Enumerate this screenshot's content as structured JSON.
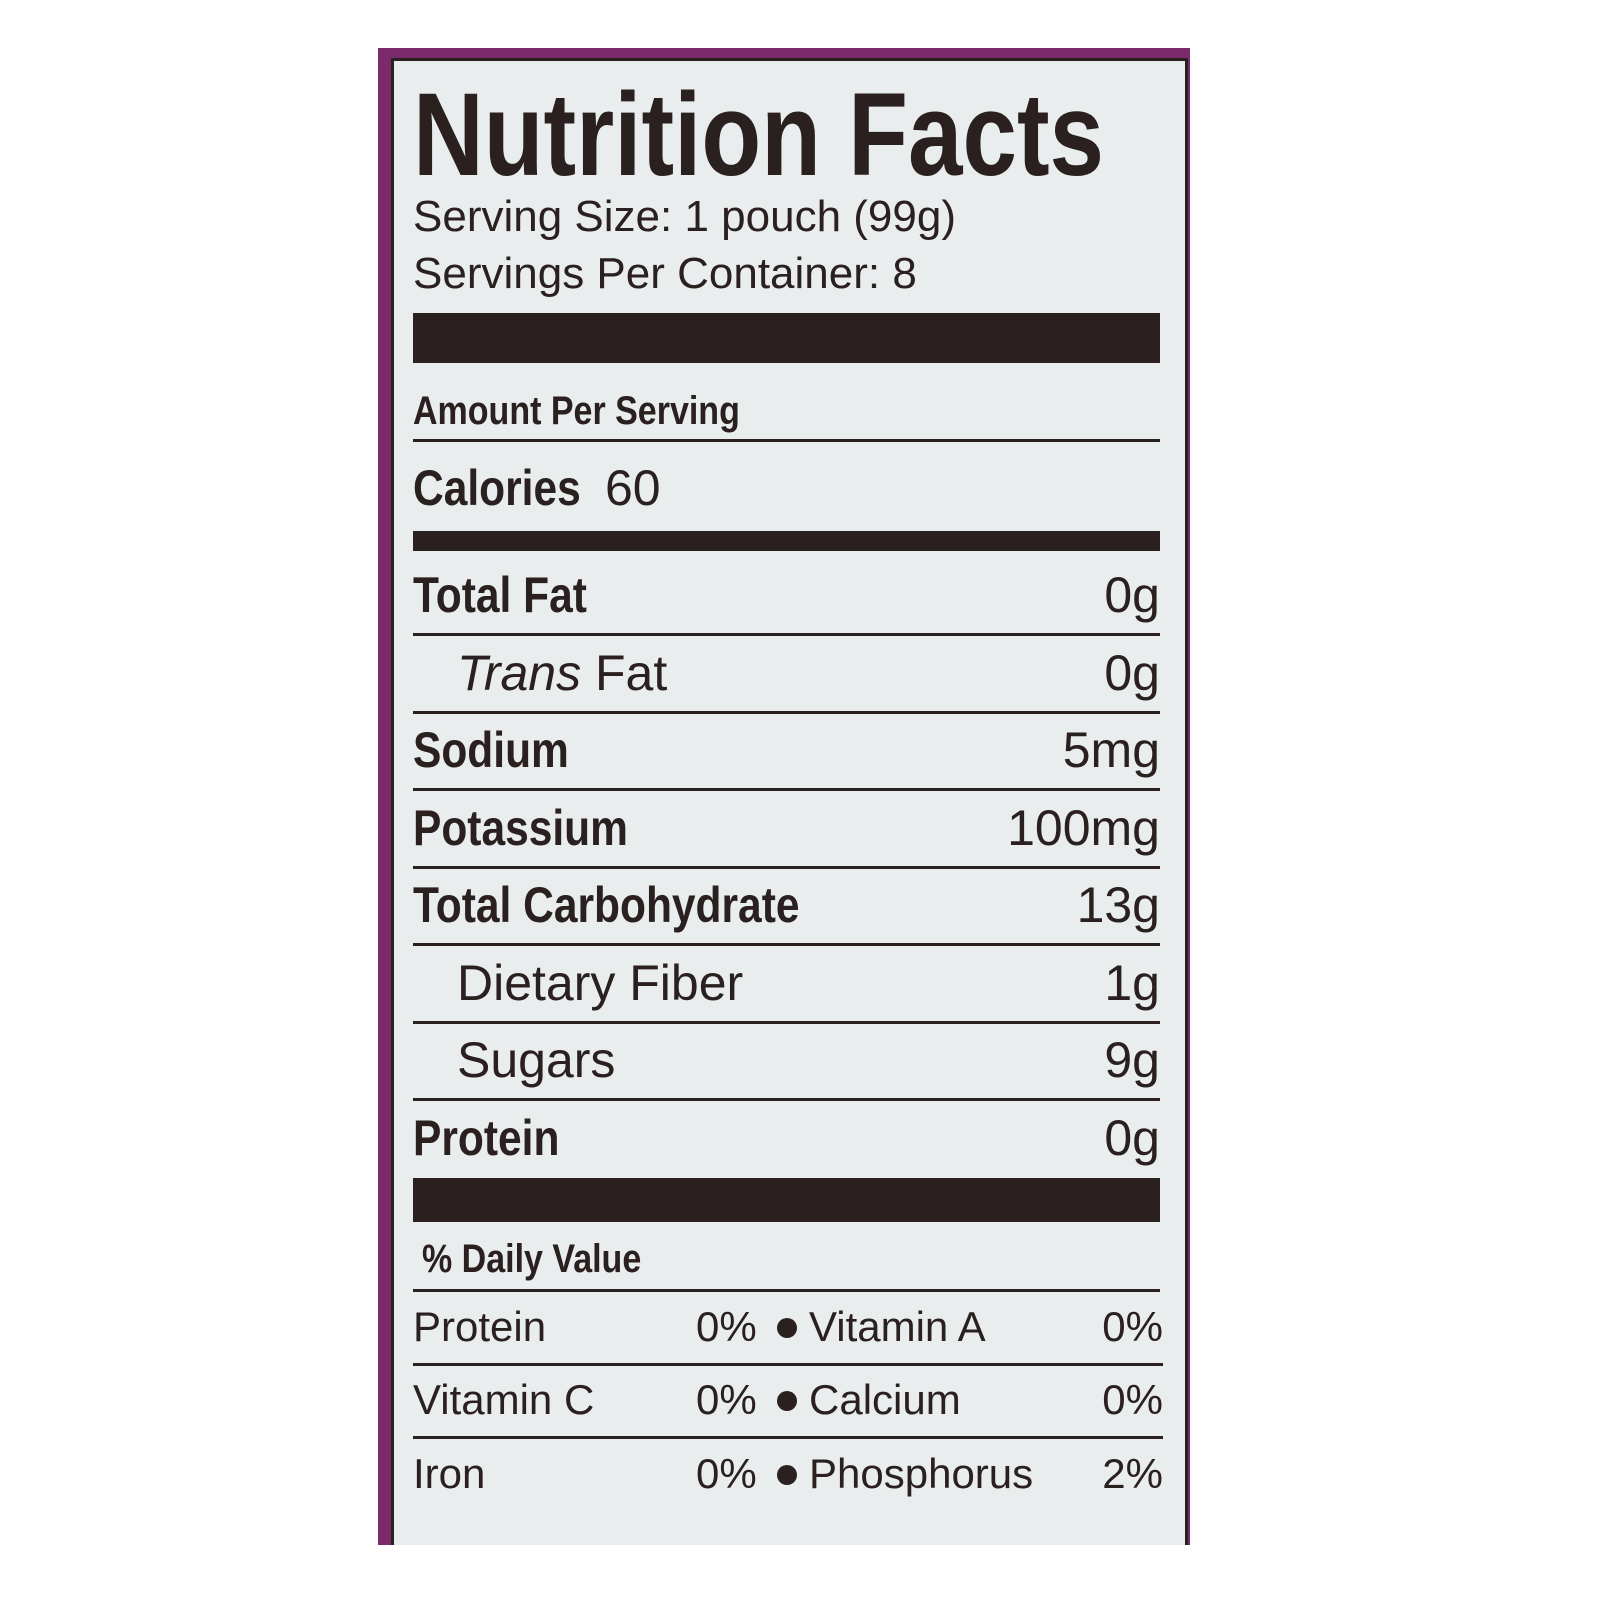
{
  "title": "Nutrition Facts",
  "serving_size": "Serving Size: 1 pouch (99g)",
  "servings_per_container": "Servings Per Container: 8",
  "amount_per_serving": "Amount Per Serving",
  "calories": {
    "label": "Calories",
    "value": "60"
  },
  "nutrients": [
    {
      "label": "Total Fat",
      "value": "0g",
      "bold": true
    },
    {
      "label_italic": "Trans",
      "label": "Fat",
      "value": "0g",
      "bold": false
    },
    {
      "label": "Sodium",
      "value": "5mg",
      "bold": true
    },
    {
      "label": "Potassium",
      "value": "100mg",
      "bold": true
    },
    {
      "label": "Total Carbohydrate",
      "value": "13g",
      "bold": true
    },
    {
      "label": "Dietary Fiber",
      "value": "1g",
      "bold": false
    },
    {
      "label": "Sugars",
      "value": "9g",
      "bold": false
    },
    {
      "label": "Protein",
      "value": "0g",
      "bold": true
    }
  ],
  "daily_value_header": "% Daily Value",
  "daily_values": [
    {
      "left_label": "Protein",
      "left_value": "0%",
      "right_label": "Vitamin A",
      "right_value": "0%"
    },
    {
      "left_label": "Vitamin C",
      "left_value": "0%",
      "right_label": "Calcium",
      "right_value": "0%"
    },
    {
      "left_label": "Iron",
      "left_value": "0%",
      "right_label": "Phosphorus",
      "right_value": "2%"
    }
  ],
  "colors": {
    "border": "#7b2a6c",
    "background": "#e9eded",
    "text": "#2b2020"
  }
}
